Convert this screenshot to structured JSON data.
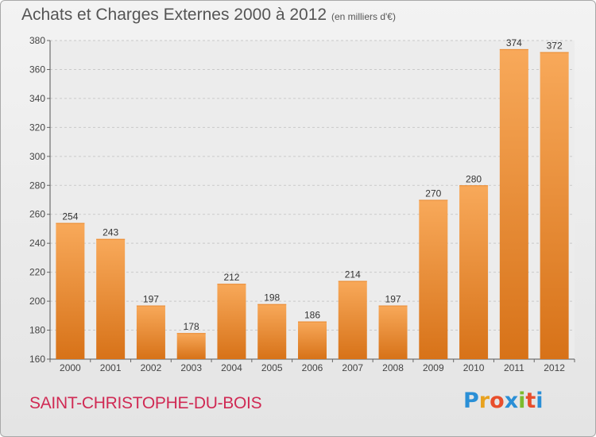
{
  "header": {
    "title": "Achats et Charges Externes 2000 à 2012",
    "unit": "(en milliers d'€)"
  },
  "footer": {
    "commune": "SAINT-CHRISTOPHE-DU-BOIS",
    "logo_text": "Proxiti"
  },
  "colors": {
    "bar_light": "#f8a95a",
    "bar_dark": "#d77218",
    "title_text": "#555555",
    "commune_text": "#d02a54"
  },
  "chart_data": {
    "type": "bar",
    "title": "Achats et Charges Externes 2000 à 2012",
    "subtitle": "(en milliers d'€)",
    "categories": [
      "2000",
      "2001",
      "2002",
      "2003",
      "2004",
      "2005",
      "2006",
      "2007",
      "2008",
      "2009",
      "2010",
      "2011",
      "2012"
    ],
    "values": [
      254,
      243,
      197,
      178,
      212,
      198,
      186,
      214,
      197,
      270,
      280,
      374,
      372
    ],
    "ylim": [
      160,
      380
    ],
    "yticks": [
      160,
      180,
      200,
      220,
      240,
      260,
      280,
      300,
      320,
      340,
      360,
      380
    ],
    "grid": true
  }
}
